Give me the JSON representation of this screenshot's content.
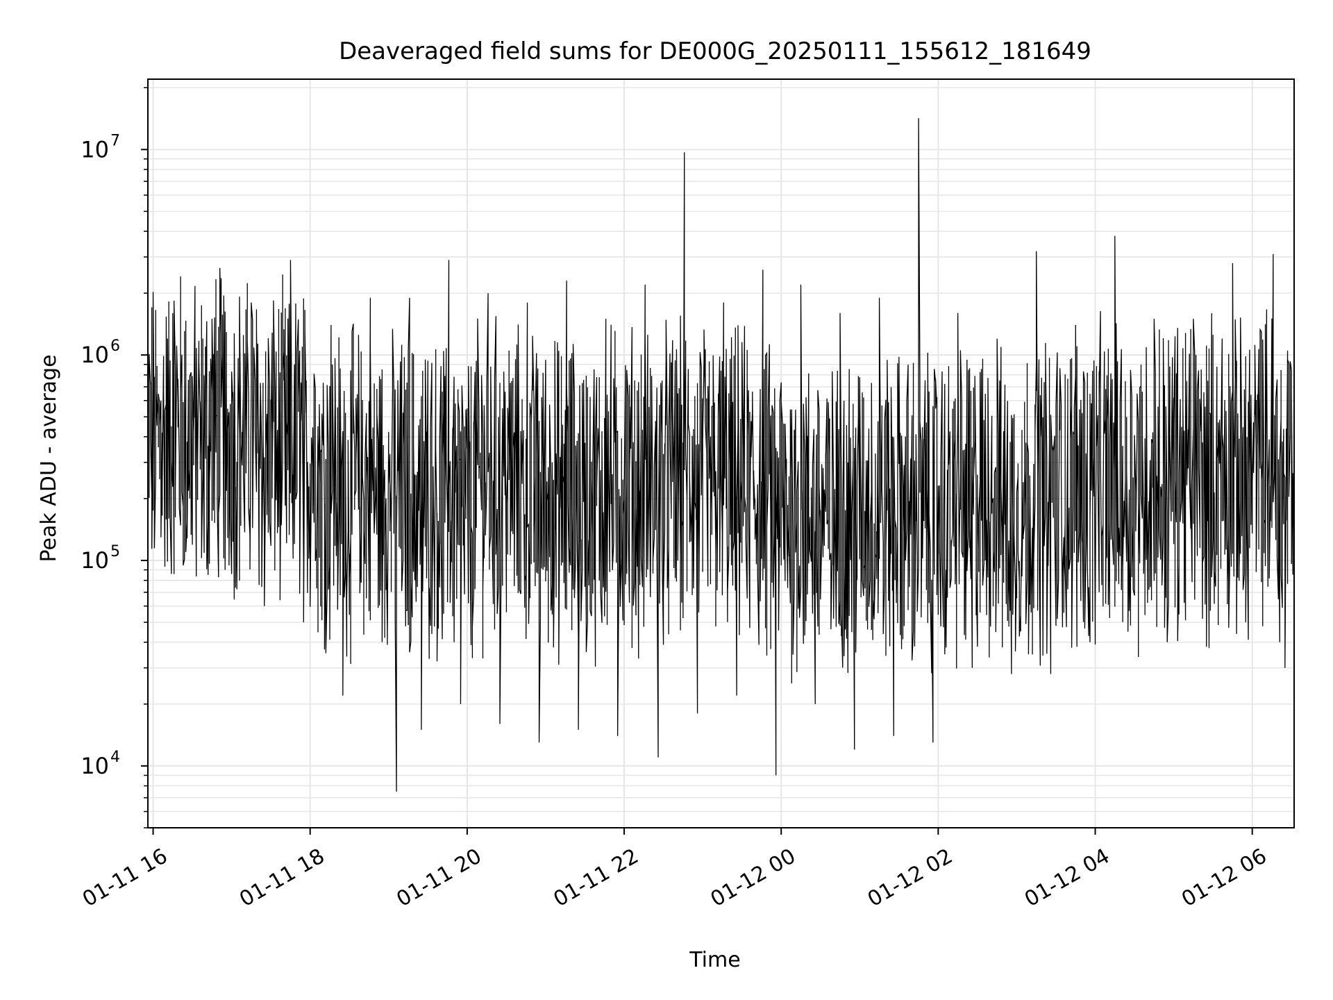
{
  "chart_data": {
    "type": "line",
    "title": "Deaveraged field sums for DE000G_20250111_155612_181649",
    "xlabel": "Time",
    "ylabel": "Peak ADU - average",
    "yscale": "log",
    "ylim": [
      5000,
      22000000
    ],
    "xlim": [
      "2025-01-11 15:56",
      "2025-01-12 06:32"
    ],
    "grid": true,
    "line_color": "#000000",
    "grid_color": "#e6e6e6",
    "x_ticks": [
      {
        "t": "2025-01-11 16:00",
        "label": "01-11 16"
      },
      {
        "t": "2025-01-11 18:00",
        "label": "01-11 18"
      },
      {
        "t": "2025-01-11 20:00",
        "label": "01-11 20"
      },
      {
        "t": "2025-01-11 22:00",
        "label": "01-11 22"
      },
      {
        "t": "2025-01-12 00:00",
        "label": "01-12 00"
      },
      {
        "t": "2025-01-12 02:00",
        "label": "01-12 02"
      },
      {
        "t": "2025-01-12 04:00",
        "label": "01-12 04"
      },
      {
        "t": "2025-01-12 06:00",
        "label": "01-12 06"
      }
    ],
    "y_ticks": [
      {
        "value": 10000,
        "base": "10",
        "exp": "4"
      },
      {
        "value": 100000,
        "base": "10",
        "exp": "5"
      },
      {
        "value": 1000000,
        "base": "10",
        "exp": "6"
      },
      {
        "value": 10000000,
        "base": "10",
        "exp": "7"
      }
    ],
    "series": [
      {
        "x": [
          "2025-01-11 15:56",
          "2025-01-11 16:06",
          "2025-01-11 16:16",
          "2025-01-11 16:26",
          "2025-01-11 16:36",
          "2025-01-11 16:46",
          "2025-01-11 16:56",
          "2025-01-11 17:06",
          "2025-01-11 17:16",
          "2025-01-11 17:26",
          "2025-01-11 17:36",
          "2025-01-11 17:46",
          "2025-01-11 17:56",
          "2025-01-11 18:06",
          "2025-01-11 18:16",
          "2025-01-11 18:26",
          "2025-01-11 18:36",
          "2025-01-11 18:46",
          "2025-01-11 18:56",
          "2025-01-11 19:06",
          "2025-01-11 19:16",
          "2025-01-11 19:26",
          "2025-01-11 19:36",
          "2025-01-11 19:46",
          "2025-01-11 19:56",
          "2025-01-11 20:06",
          "2025-01-11 20:16",
          "2025-01-11 20:26",
          "2025-01-11 20:36",
          "2025-01-11 20:46",
          "2025-01-11 20:56",
          "2025-01-11 21:06",
          "2025-01-11 21:16",
          "2025-01-11 21:26",
          "2025-01-11 21:36",
          "2025-01-11 21:46",
          "2025-01-11 21:56",
          "2025-01-11 22:06",
          "2025-01-11 22:16",
          "2025-01-11 22:26",
          "2025-01-11 22:36",
          "2025-01-11 22:46",
          "2025-01-11 22:56",
          "2025-01-11 23:06",
          "2025-01-11 23:16",
          "2025-01-11 23:26",
          "2025-01-11 23:36",
          "2025-01-11 23:46",
          "2025-01-11 23:56",
          "2025-01-12 00:06",
          "2025-01-12 00:16",
          "2025-01-12 00:26",
          "2025-01-12 00:36",
          "2025-01-12 00:46",
          "2025-01-12 00:56",
          "2025-01-12 01:06",
          "2025-01-12 01:16",
          "2025-01-12 01:26",
          "2025-01-12 01:36",
          "2025-01-12 01:46",
          "2025-01-12 01:56",
          "2025-01-12 02:06",
          "2025-01-12 02:16",
          "2025-01-12 02:26",
          "2025-01-12 02:36",
          "2025-01-12 02:46",
          "2025-01-12 02:56",
          "2025-01-12 03:06",
          "2025-01-12 03:16",
          "2025-01-12 03:26",
          "2025-01-12 03:36",
          "2025-01-12 03:46",
          "2025-01-12 03:56",
          "2025-01-12 04:06",
          "2025-01-12 04:16",
          "2025-01-12 04:26",
          "2025-01-12 04:36",
          "2025-01-12 04:46",
          "2025-01-12 04:56",
          "2025-01-12 05:06",
          "2025-01-12 05:16",
          "2025-01-12 05:26",
          "2025-01-12 05:36",
          "2025-01-12 05:46",
          "2025-01-12 05:56",
          "2025-01-12 06:06",
          "2025-01-12 06:16",
          "2025-01-12 06:26"
        ],
        "y": [
          200000,
          600000,
          1600000,
          110000,
          500000,
          1500000,
          90000,
          400000,
          1800000,
          60000,
          500000,
          2900000,
          50000,
          450000,
          1400000,
          22000,
          600000,
          1900000,
          40000,
          7500,
          1900000,
          15000,
          800000,
          2900000,
          20000,
          400000,
          2000000,
          16000,
          350000,
          1800000,
          13000,
          300000,
          2300000,
          15000,
          250000,
          1500000,
          14000,
          350000,
          2200000,
          11000,
          400000,
          9700000,
          18000,
          250000,
          1800000,
          22000,
          200000,
          2600000,
          9000,
          150000,
          2200000,
          20000,
          150000,
          1600000,
          12000,
          120000,
          1900000,
          14000,
          100000,
          14200000,
          13000,
          90000,
          1600000,
          30000,
          100000,
          1200000,
          28000,
          150000,
          3200000,
          28000,
          130000,
          1400000,
          40000,
          150000,
          3800000,
          45000,
          160000,
          1500000,
          40000,
          200000,
          1500000,
          38000,
          250000,
          2800000,
          50000,
          280000,
          3100000,
          30000
        ]
      }
    ]
  }
}
